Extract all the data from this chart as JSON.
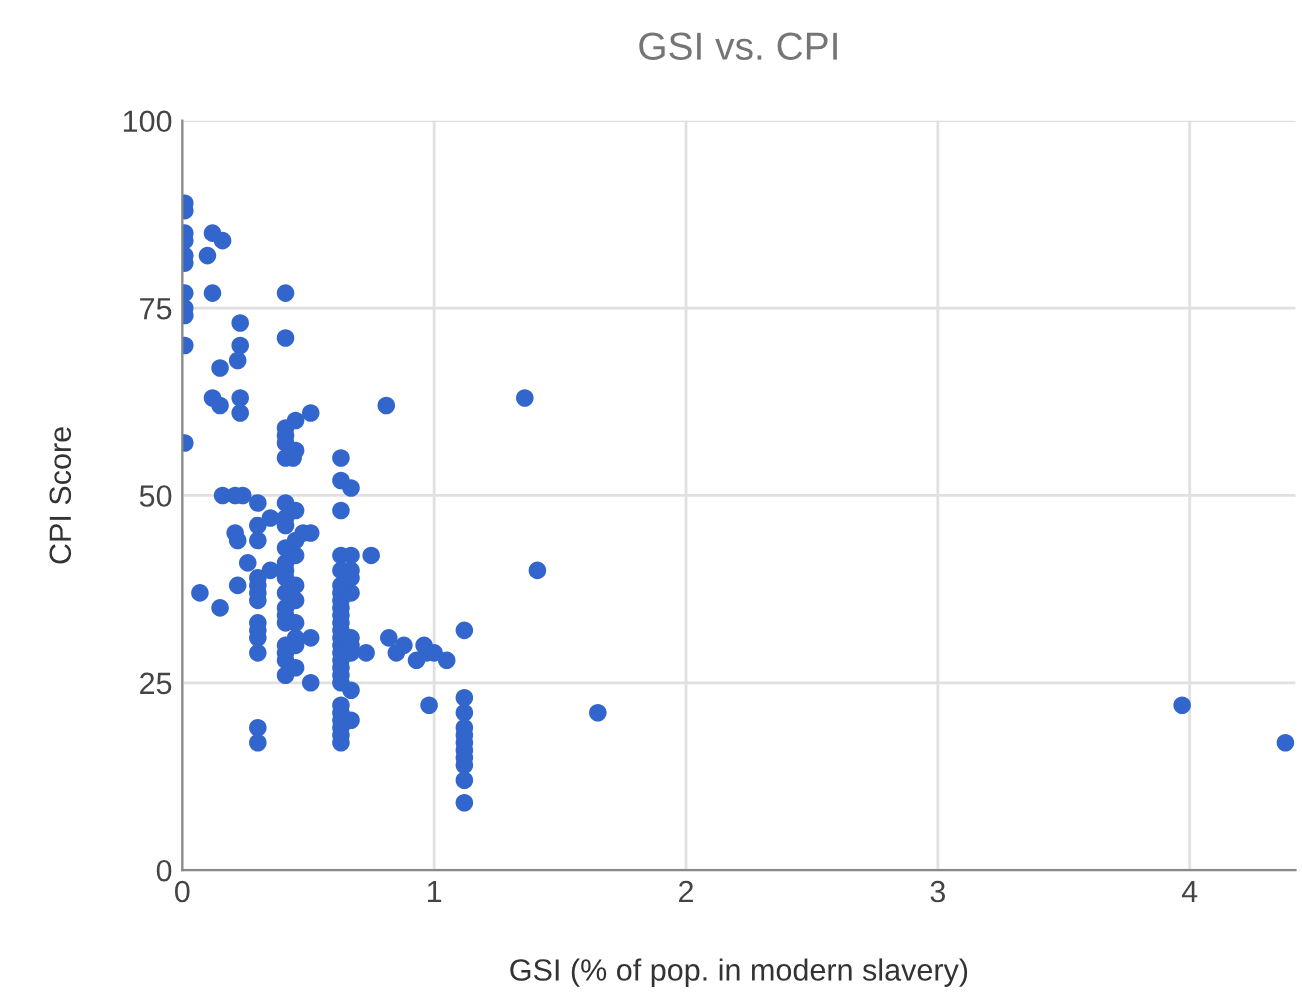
{
  "chart_data": {
    "type": "scatter",
    "title": "GSI vs. CPI",
    "xlabel": "GSI (% of pop. in modern slavery)",
    "ylabel": "CPI Score",
    "xlim": [
      0,
      4.42
    ],
    "xticks": [
      0,
      1,
      2,
      3,
      4
    ],
    "ylim": [
      0,
      100
    ],
    "yticks": [
      0,
      25,
      50,
      75,
      100
    ],
    "grid": true,
    "marker": "circle",
    "legend": false,
    "series": [
      {
        "color": "#3366cc",
        "x": [
          0.01,
          0.01,
          0.01,
          0.01,
          0.01,
          0.01,
          0.01,
          0.01,
          0.01,
          0.01,
          0.01,
          0.07,
          0.12,
          0.1,
          0.12,
          0.12,
          0.16,
          0.15,
          0.15,
          0.16,
          0.15,
          0.23,
          0.23,
          0.22,
          0.23,
          0.23,
          0.21,
          0.24,
          0.21,
          0.22,
          0.22,
          0.26,
          0.3,
          0.3,
          0.3,
          0.3,
          0.3,
          0.3,
          0.3,
          0.3,
          0.3,
          0.3,
          0.3,
          0.3,
          0.3,
          0.35,
          0.35,
          0.41,
          0.41,
          0.41,
          0.41,
          0.41,
          0.41,
          0.41,
          0.41,
          0.41,
          0.41,
          0.41,
          0.41,
          0.41,
          0.41,
          0.41,
          0.41,
          0.41,
          0.41,
          0.41,
          0.41,
          0.41,
          0.45,
          0.45,
          0.44,
          0.45,
          0.45,
          0.45,
          0.45,
          0.45,
          0.45,
          0.45,
          0.45,
          0.45,
          0.48,
          0.51,
          0.51,
          0.51,
          0.51,
          0.63,
          0.63,
          0.63,
          0.63,
          0.63,
          0.63,
          0.63,
          0.63,
          0.63,
          0.63,
          0.63,
          0.63,
          0.63,
          0.63,
          0.63,
          0.63,
          0.63,
          0.63,
          0.63,
          0.63,
          0.63,
          0.63,
          0.63,
          0.63,
          0.63,
          0.67,
          0.67,
          0.67,
          0.67,
          0.67,
          0.67,
          0.67,
          0.67,
          0.67,
          0.67,
          0.75,
          0.73,
          0.81,
          0.82,
          0.85,
          0.88,
          0.93,
          0.96,
          0.97,
          0.98,
          1.0,
          1.05,
          1.12,
          1.12,
          1.12,
          1.12,
          1.12,
          1.12,
          1.12,
          1.12,
          1.12,
          1.12,
          1.12,
          1.36,
          1.41,
          1.65,
          3.97,
          4.38
        ],
        "values": [
          89,
          88,
          85,
          84,
          82,
          81,
          77,
          75,
          74,
          70,
          57,
          37,
          85,
          82,
          77,
          63,
          84,
          67,
          62,
          50,
          35,
          73,
          70,
          68,
          63,
          61,
          50,
          50,
          45,
          44,
          38,
          41,
          49,
          46,
          44,
          39,
          38,
          37,
          36,
          33,
          32,
          31,
          29,
          19,
          17,
          47,
          40,
          77,
          71,
          59,
          58,
          57,
          55,
          49,
          47,
          46,
          43,
          41,
          40,
          39,
          37,
          35,
          34,
          33,
          30,
          29,
          28,
          26,
          60,
          56,
          55,
          48,
          44,
          42,
          38,
          36,
          33,
          31,
          30,
          27,
          45,
          61,
          45,
          31,
          25,
          55,
          52,
          48,
          42,
          40,
          38,
          37,
          36,
          35,
          34,
          33,
          32,
          31,
          30,
          29,
          28,
          27,
          26,
          25,
          22,
          21,
          20,
          19,
          18,
          17,
          51,
          42,
          40,
          39,
          37,
          31,
          30,
          29,
          24,
          20,
          42,
          29,
          62,
          31,
          29,
          30,
          28,
          30,
          29,
          22,
          29,
          28,
          32,
          23,
          21,
          19,
          18,
          17,
          16,
          15,
          14,
          12,
          9,
          63,
          40,
          21,
          22,
          17
        ]
      }
    ]
  }
}
